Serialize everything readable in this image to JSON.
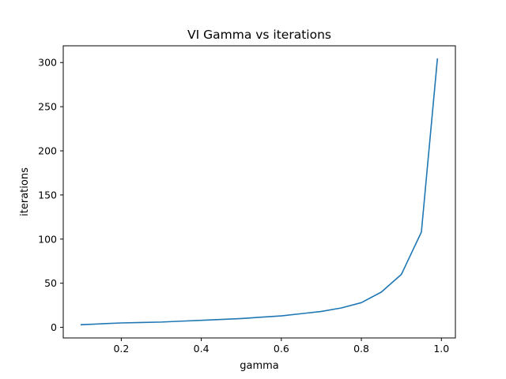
{
  "chart_data": {
    "type": "line",
    "title": "VI Gamma vs iterations",
    "xlabel": "gamma",
    "ylabel": "iterations",
    "xlim": [
      0.055,
      1.035
    ],
    "ylim": [
      -12,
      319
    ],
    "xticks": [
      0.2,
      0.4,
      0.6,
      0.8,
      1.0
    ],
    "xtick_labels": [
      "0.2",
      "0.4",
      "0.6",
      "0.8",
      "1.0"
    ],
    "yticks": [
      0,
      50,
      100,
      150,
      200,
      250,
      300
    ],
    "ytick_labels": [
      "0",
      "50",
      "100",
      "150",
      "200",
      "250",
      "300"
    ],
    "grid": false,
    "series": [
      {
        "color": "#1f77b4",
        "x": [
          0.1,
          0.15,
          0.2,
          0.25,
          0.3,
          0.35,
          0.4,
          0.45,
          0.5,
          0.55,
          0.6,
          0.65,
          0.7,
          0.75,
          0.8,
          0.85,
          0.9,
          0.95,
          0.99
        ],
        "y": [
          3,
          4,
          5,
          5.5,
          6,
          7,
          8,
          9,
          10,
          11.5,
          13,
          15.5,
          18,
          22,
          28,
          40,
          60,
          108,
          304
        ]
      }
    ]
  }
}
